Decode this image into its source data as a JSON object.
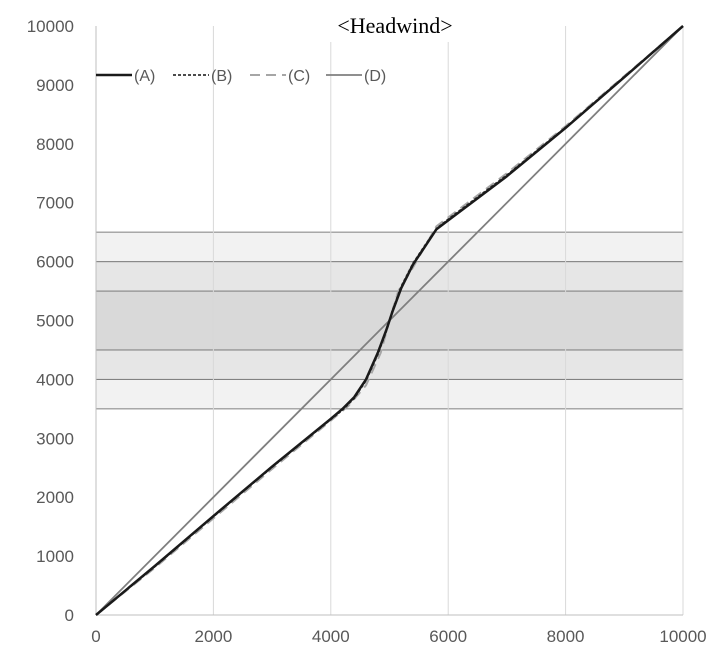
{
  "chart_data": {
    "type": "line",
    "title": "<Headwind>",
    "xlabel": "",
    "ylabel": "",
    "xlim": [
      0,
      10000
    ],
    "ylim": [
      0,
      10000
    ],
    "x_ticks": [
      "0",
      "2000",
      "4000",
      "6000",
      "8000",
      "10000"
    ],
    "y_ticks": [
      "0",
      "1000",
      "2000",
      "3000",
      "4000",
      "5000",
      "6000",
      "7000",
      "8000",
      "9000",
      "10000"
    ],
    "grid": "vertical",
    "legend_position": "top-left",
    "bands": [
      {
        "y0": 3500,
        "y1": 4000,
        "color": "#f2f2f2"
      },
      {
        "y0": 4000,
        "y1": 4500,
        "color": "#e6e6e6"
      },
      {
        "y0": 4500,
        "y1": 5500,
        "color": "#d9d9d9"
      },
      {
        "y0": 5500,
        "y1": 6000,
        "color": "#e6e6e6"
      },
      {
        "y0": 6000,
        "y1": 6500,
        "color": "#f2f2f2"
      }
    ],
    "band_xrange": [
      0,
      10000
    ],
    "series": [
      {
        "name": "(A)",
        "color": "#1a1a1a",
        "dash": "solid",
        "width": 2.5,
        "x": [
          0,
          1000,
          2000,
          3000,
          4000,
          4200,
          4400,
          4600,
          4800,
          4950,
          5000,
          5050,
          5200,
          5400,
          5600,
          5800,
          6000,
          7000,
          8000,
          9000,
          10000
        ],
        "y": [
          0,
          830,
          1680,
          2520,
          3330,
          3500,
          3700,
          4000,
          4450,
          4850,
          5000,
          5150,
          5550,
          5950,
          6250,
          6550,
          6700,
          7450,
          8270,
          9130,
          10000
        ]
      },
      {
        "name": "(B)",
        "color": "#333333",
        "dash": "dotted",
        "width": 1.8,
        "x": [
          0,
          1000,
          2000,
          3000,
          4000,
          4200,
          4400,
          4600,
          4800,
          4950,
          5000,
          5050,
          5200,
          5400,
          5600,
          5800,
          6000,
          7000,
          8000,
          9000,
          10000
        ],
        "y": [
          0,
          820,
          1670,
          2510,
          3320,
          3480,
          3680,
          3980,
          4420,
          4830,
          5000,
          5170,
          5580,
          5970,
          6270,
          6560,
          6720,
          7470,
          8280,
          9140,
          10000
        ]
      },
      {
        "name": "(C)",
        "color": "#a6a6a6",
        "dash": "dashed",
        "width": 2,
        "x": [
          0,
          1000,
          2000,
          3000,
          4000,
          4300,
          4600,
          4850,
          5000,
          5150,
          5400,
          5600,
          5800,
          6000,
          7000,
          8000,
          9000,
          10000
        ],
        "y": [
          0,
          800,
          1640,
          2480,
          3300,
          3550,
          3900,
          4450,
          5000,
          5500,
          5900,
          6250,
          6600,
          6750,
          7500,
          8300,
          9150,
          10000
        ]
      },
      {
        "name": "(D)",
        "color": "#7f7f7f",
        "dash": "solid",
        "width": 1.8,
        "x": [
          0,
          10000
        ],
        "y": [
          0,
          10000
        ]
      }
    ]
  }
}
